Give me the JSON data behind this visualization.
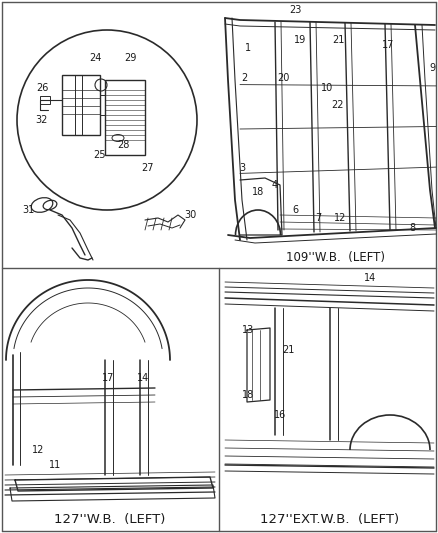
{
  "background_color": "#ffffff",
  "line_color": "#2a2a2a",
  "text_color": "#1a1a1a",
  "fig_width": 4.38,
  "fig_height": 5.33,
  "dpi": 100,
  "caption_top": "109''W.B.  (LEFT)",
  "caption_bottom_left": "127''W.B.  (LEFT)",
  "caption_bottom_right": "127''EXT.W.B.  (LEFT)",
  "caption_fontsize": 8.5,
  "label_fontsize": 7.0,
  "border_lw": 1.0,
  "divider_color": "#555555"
}
